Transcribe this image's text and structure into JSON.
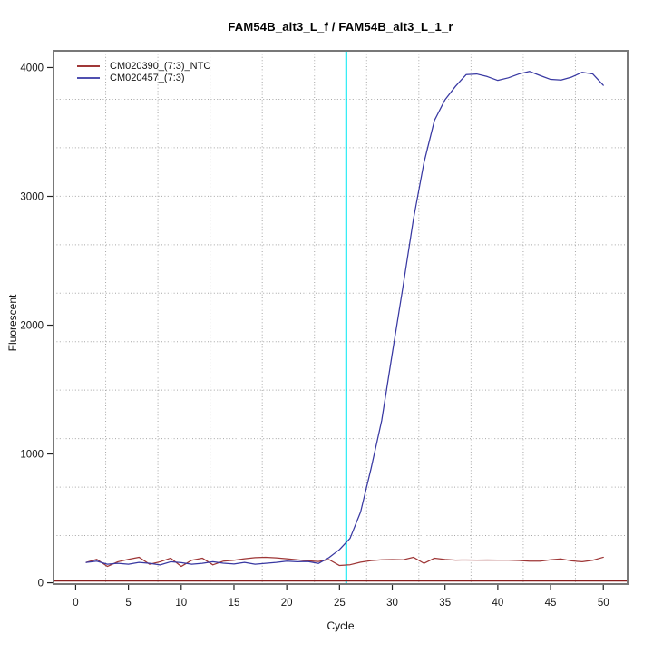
{
  "title": "FAM54B_alt3_L_f / FAM54B_alt3_L_1_r",
  "legend": {
    "items": [
      {
        "label": "CM020390_(7:3)_NTC",
        "color": "#A03838"
      },
      {
        "label": "CM020457_(7:3)",
        "color": "#5050B0"
      }
    ]
  },
  "chart_data": {
    "type": "line",
    "title": "FAM54B_alt3_L_f / FAM54B_alt3_L_1_r",
    "xlabel": "Cycle",
    "ylabel": "Fluorescent",
    "x_ticks": [
      0,
      5,
      10,
      15,
      20,
      25,
      30,
      35,
      40,
      45,
      50
    ],
    "y_ticks": [
      0,
      1000,
      2000,
      3000,
      4000
    ],
    "xlim": [
      -2.1,
      52.3
    ],
    "ylim": [
      -10,
      4130
    ],
    "grid": {
      "nx": 11,
      "ny": 11,
      "style": "dotted",
      "color": "#A6A6A6"
    },
    "x": [
      1,
      2,
      3,
      4,
      5,
      6,
      7,
      8,
      9,
      10,
      11,
      12,
      13,
      14,
      15,
      16,
      17,
      18,
      19,
      20,
      21,
      22,
      23,
      24,
      25,
      26,
      27,
      28,
      29,
      30,
      31,
      32,
      33,
      34,
      35,
      36,
      37,
      38,
      39,
      40,
      41,
      42,
      43,
      44,
      45,
      46,
      47,
      48,
      49,
      50
    ],
    "series": [
      {
        "name": "CM020390_(7:3)_NTC",
        "color": "#9E3636",
        "values": [
          158,
          182,
          127,
          163,
          182,
          198,
          144,
          163,
          191,
          127,
          175,
          191,
          139,
          168,
          175,
          186,
          195,
          198,
          193,
          186,
          178,
          170,
          165,
          180,
          134,
          140,
          160,
          172,
          178,
          180,
          178,
          198,
          151,
          191,
          181,
          176,
          177,
          176,
          177,
          176,
          176,
          173,
          168,
          168,
          178,
          185,
          170,
          163,
          175,
          198
        ]
      },
      {
        "name": "CM020457_(7:3)",
        "color": "#3838A2",
        "values": [
          158,
          168,
          144,
          151,
          144,
          158,
          151,
          139,
          163,
          156,
          144,
          151,
          163,
          152,
          146,
          158,
          144,
          151,
          158,
          168,
          163,
          165,
          150,
          195,
          258,
          345,
          550,
          890,
          1260,
          1780,
          2290,
          2820,
          3260,
          3590,
          3750,
          3855,
          3945,
          3950,
          3930,
          3900,
          3920,
          3950,
          3970,
          3938,
          3908,
          3903,
          3926,
          3963,
          3950,
          3862
        ]
      }
    ],
    "threshold_line": {
      "y": 15,
      "color": "#8B1E1E"
    },
    "ct_line": {
      "x": 25.64,
      "color": "#00E8F2"
    },
    "axis_color": "#222222",
    "box_color": "#787878"
  }
}
